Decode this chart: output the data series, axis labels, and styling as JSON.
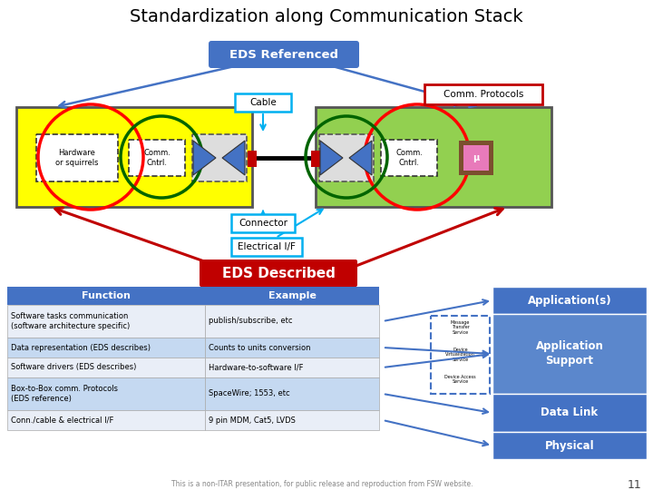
{
  "title": "Standardization along Communication Stack",
  "title_fontsize": 14,
  "bg_color": "#ffffff",
  "eds_referenced_label": "EDS Referenced",
  "eds_described_label": "EDS Described",
  "eds_ref_color": "#4472c4",
  "eds_desc_color": "#c00000",
  "cable_label": "Cable",
  "connector_label": "Connector",
  "electrical_if_label": "Electrical I/F",
  "comm_protocols_label": "Comm. Protocols",
  "hardware_label": "Hardware\nor squirrels",
  "comm_cntrl_label": "Comm.\nCntrl.",
  "yellow_box_color": "#ffff00",
  "green_box_color": "#92d050",
  "red_circle_color": "#ff0000",
  "dark_green_circle_color": "#006400",
  "comm_protocols_box_color": "#ffffff",
  "comm_protocols_edge_color": "#c00000",
  "cable_box_color": "#ffffff",
  "cable_edge_color": "#00b0f0",
  "connector_box_color": "#ffffff",
  "connector_edge_color": "#00b0f0",
  "electrical_if_box_color": "#ffffff",
  "electrical_if_edge_color": "#00b0f0",
  "table_header_color": "#4472c4",
  "table_header_text": "#ffffff",
  "table_row_odd_color": "#c5d9f1",
  "table_row_even_color": "#e9eef7",
  "table_functions": [
    "Software tasks communication\n(software architecture specific)",
    "Data representation (EDS describes)",
    "Software drivers (EDS describes)",
    "Box-to-Box comm. Protocols\n(EDS reference)",
    "Conn./cable & electrical I/F"
  ],
  "table_examples": [
    "publish/subscribe, etc",
    "Counts to units conversion",
    "Hardware-to-software I/F",
    "SpaceWire; 1553, etc",
    "9 pin MDM, Cat5, LVDS"
  ],
  "stack_labels": [
    "Application(s)",
    "Application\nSupport",
    "Data Link",
    "Physical"
  ],
  "stack_text_color": "#ffffff",
  "footer_text": "This is a non-ITAR presentation, for public release and reproduction from FSW website.",
  "slide_number": "11",
  "arrow_blue": "#4472c4",
  "arrow_red": "#c00000",
  "chip_outer_color": "#8b4513",
  "chip_inner_color": "#ff69b4"
}
